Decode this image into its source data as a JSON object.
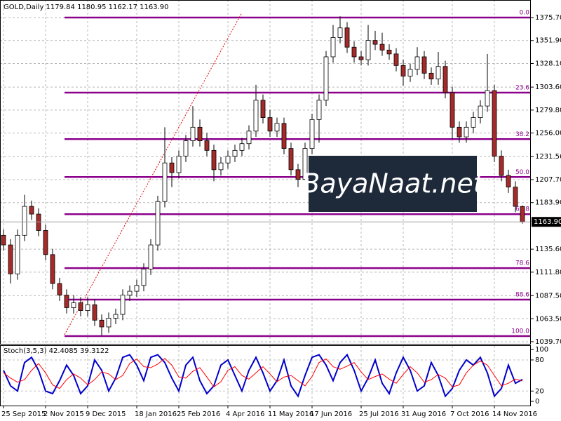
{
  "chart_data": [
    {
      "type": "candlestick",
      "title": "GOLD,Daily  1179.84 1180.95 1162.17 1163.90",
      "categories": [
        "25 Sep 2015",
        null,
        null,
        null,
        null,
        null,
        "2 Nov 2015",
        null,
        null,
        null,
        null,
        null,
        "9 Dec 2015",
        null,
        null,
        null,
        null,
        null,
        null,
        "18 Jan 2016",
        null,
        null,
        null,
        null,
        null,
        "25 Feb 2016",
        null,
        null,
        null,
        null,
        null,
        null,
        "4 Apr 2016",
        null,
        null,
        null,
        null,
        null,
        "11 May 2016",
        null,
        null,
        null,
        null,
        null,
        "17 Jun 2016",
        null,
        null,
        null,
        null,
        null,
        null,
        "25 Jul 2016",
        null,
        null,
        null,
        null,
        null,
        "31 Aug 2016",
        null,
        null,
        null,
        null,
        null,
        null,
        "7 Oct 2016",
        null,
        null,
        null,
        null,
        null,
        "14 Nov 2016",
        null,
        null,
        null,
        null
      ],
      "ohlc": [
        [
          1150,
          1156,
          1134,
          1140
        ],
        [
          1140,
          1146,
          1100,
          1110
        ],
        [
          1110,
          1156,
          1104,
          1150
        ],
        [
          1150,
          1192,
          1144,
          1180
        ],
        [
          1180,
          1186,
          1166,
          1172
        ],
        [
          1172,
          1178,
          1149,
          1155
        ],
        [
          1155,
          1161,
          1124,
          1130
        ],
        [
          1130,
          1136,
          1094,
          1100
        ],
        [
          1100,
          1106,
          1082,
          1088
        ],
        [
          1088,
          1094,
          1069,
          1075
        ],
        [
          1075,
          1088,
          1069,
          1080
        ],
        [
          1080,
          1086,
          1066,
          1072
        ],
        [
          1072,
          1086,
          1066,
          1078
        ],
        [
          1078,
          1084,
          1056,
          1062
        ],
        [
          1062,
          1068,
          1046,
          1055
        ],
        [
          1055,
          1070,
          1049,
          1064
        ],
        [
          1064,
          1074,
          1058,
          1068
        ],
        [
          1068,
          1094,
          1062,
          1088
        ],
        [
          1088,
          1098,
          1082,
          1092
        ],
        [
          1092,
          1104,
          1086,
          1098
        ],
        [
          1098,
          1121,
          1092,
          1115
        ],
        [
          1115,
          1146,
          1109,
          1140
        ],
        [
          1140,
          1191,
          1134,
          1185
        ],
        [
          1185,
          1262,
          1179,
          1225
        ],
        [
          1225,
          1231,
          1200,
          1215
        ],
        [
          1215,
          1238,
          1209,
          1232
        ],
        [
          1232,
          1254,
          1226,
          1248
        ],
        [
          1248,
          1284,
          1242,
          1262
        ],
        [
          1262,
          1270,
          1242,
          1248
        ],
        [
          1248,
          1256,
          1232,
          1238
        ],
        [
          1238,
          1244,
          1206,
          1218
        ],
        [
          1218,
          1231,
          1212,
          1225
        ],
        [
          1225,
          1238,
          1219,
          1232
        ],
        [
          1232,
          1244,
          1226,
          1238
        ],
        [
          1238,
          1251,
          1232,
          1245
        ],
        [
          1245,
          1264,
          1239,
          1258
        ],
        [
          1258,
          1306,
          1252,
          1290
        ],
        [
          1290,
          1296,
          1266,
          1272
        ],
        [
          1272,
          1280,
          1252,
          1258
        ],
        [
          1258,
          1272,
          1252,
          1266
        ],
        [
          1266,
          1272,
          1234,
          1240
        ],
        [
          1240,
          1246,
          1212,
          1218
        ],
        [
          1218,
          1224,
          1200,
          1208
        ],
        [
          1208,
          1246,
          1202,
          1240
        ],
        [
          1240,
          1276,
          1234,
          1270
        ],
        [
          1270,
          1296,
          1246,
          1290
        ],
        [
          1290,
          1341,
          1284,
          1335
        ],
        [
          1335,
          1368,
          1329,
          1355
        ],
        [
          1355,
          1377,
          1349,
          1365
        ],
        [
          1365,
          1371,
          1339,
          1345
        ],
        [
          1345,
          1351,
          1329,
          1335
        ],
        [
          1335,
          1341,
          1326,
          1332
        ],
        [
          1332,
          1368,
          1326,
          1352
        ],
        [
          1352,
          1362,
          1342,
          1348
        ],
        [
          1348,
          1360,
          1336,
          1342
        ],
        [
          1342,
          1348,
          1332,
          1338
        ],
        [
          1338,
          1344,
          1320,
          1326
        ],
        [
          1326,
          1332,
          1305,
          1315
        ],
        [
          1315,
          1328,
          1309,
          1322
        ],
        [
          1322,
          1345,
          1316,
          1335
        ],
        [
          1335,
          1341,
          1312,
          1318
        ],
        [
          1318,
          1324,
          1306,
          1312
        ],
        [
          1312,
          1340,
          1306,
          1325
        ],
        [
          1325,
          1331,
          1292,
          1298
        ],
        [
          1298,
          1304,
          1250,
          1262
        ],
        [
          1262,
          1268,
          1246,
          1252
        ],
        [
          1252,
          1268,
          1246,
          1262
        ],
        [
          1262,
          1278,
          1256,
          1272
        ],
        [
          1272,
          1290,
          1266,
          1284
        ],
        [
          1284,
          1338,
          1278,
          1300
        ],
        [
          1300,
          1306,
          1226,
          1232
        ],
        [
          1232,
          1238,
          1206,
          1212
        ],
        [
          1212,
          1218,
          1194,
          1200
        ],
        [
          1200,
          1206,
          1174,
          1180
        ],
        [
          1179.84,
          1180.95,
          1162.17,
          1163.9
        ]
      ],
      "up_color": "#ffffff",
      "down_color": "#a52a2a",
      "outline_color": "#000000",
      "ylim": [
        1037.5,
        1393.9
      ],
      "yticks": [
        {
          "value": 1375.7,
          "label": "1375.70"
        },
        {
          "value": 1351.9,
          "label": "1351.90"
        },
        {
          "value": 1328.1,
          "label": "1328.10"
        },
        {
          "value": 1303.6,
          "label": "1303.60"
        },
        {
          "value": 1279.8,
          "label": "1279.80"
        },
        {
          "value": 1256,
          "label": "1256.00"
        },
        {
          "value": 1231.56,
          "label": "1231.56"
        },
        {
          "value": 1207.7,
          "label": "1207.70"
        },
        {
          "value": 1183.9,
          "label": "1183.90"
        },
        {
          "value": 1135.6,
          "label": "1135.60"
        },
        {
          "value": 1111.8,
          "label": "1111.80"
        },
        {
          "value": 1087.5,
          "label": "1087.50"
        },
        {
          "value": 1063.5,
          "label": "1063.50"
        },
        {
          "value": 1039.7,
          "label": "1039.70"
        }
      ],
      "grid": true,
      "current_price": {
        "value": 1163.9,
        "label": "1163.90"
      },
      "fibonacci": {
        "color": "#8b008b",
        "levels": [
          {
            "label": "0.0",
            "price": 1375.7
          },
          {
            "label": "23.6",
            "price": 1297.9
          },
          {
            "label": "38.2",
            "price": 1249.7
          },
          {
            "label": "50.0",
            "price": 1210.4
          },
          {
            "label": "61.8",
            "price": 1171.9
          },
          {
            "label": "78.6",
            "price": 1116
          },
          {
            "label": "88.6",
            "price": 1083.3
          },
          {
            "label": "100.0",
            "price": 1045.5
          }
        ]
      },
      "watermark": "BayaNaat.net"
    },
    {
      "type": "line",
      "title": "Stoch(3,5,3) 42.4085 39.3122",
      "series": [
        {
          "name": "%K",
          "color": "#0000cc",
          "values": [
            60,
            30,
            20,
            75,
            85,
            60,
            20,
            15,
            40,
            70,
            50,
            15,
            30,
            80,
            60,
            20,
            45,
            85,
            90,
            70,
            40,
            85,
            90,
            75,
            45,
            20,
            70,
            85,
            40,
            15,
            30,
            70,
            80,
            50,
            20,
            60,
            85,
            55,
            20,
            40,
            80,
            30,
            10,
            50,
            85,
            90,
            70,
            40,
            75,
            90,
            60,
            20,
            45,
            80,
            35,
            15,
            55,
            85,
            60,
            20,
            30,
            75,
            50,
            10,
            25,
            60,
            80,
            70,
            85,
            55,
            10,
            25,
            70,
            35,
            42.4085
          ]
        },
        {
          "name": "%D",
          "color": "#ff0000",
          "values": [
            55,
            45,
            37,
            42,
            60,
            73,
            55,
            32,
            25,
            42,
            53,
            45,
            32,
            42,
            57,
            53,
            42,
            50,
            73,
            82,
            67,
            65,
            72,
            83,
            70,
            47,
            45,
            58,
            65,
            47,
            28,
            38,
            60,
            67,
            50,
            43,
            55,
            67,
            53,
            38,
            47,
            50,
            40,
            30,
            48,
            75,
            82,
            67,
            62,
            68,
            75,
            57,
            42,
            48,
            53,
            43,
            35,
            52,
            67,
            55,
            37,
            42,
            52,
            45,
            28,
            32,
            55,
            70,
            78,
            70,
            50,
            30,
            35,
            43,
            39.3122
          ]
        }
      ],
      "ylim": [
        -8,
        107
      ],
      "yticks": [
        100,
        80,
        20,
        0
      ],
      "levels": [
        80,
        20
      ]
    }
  ]
}
